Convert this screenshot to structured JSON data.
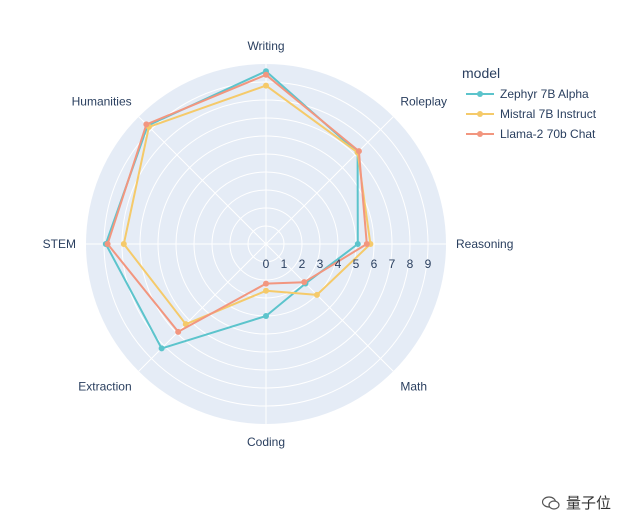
{
  "chart_data": {
    "type": "radar",
    "categories": [
      "Writing",
      "Roleplay",
      "Reasoning",
      "Math",
      "Coding",
      "Extraction",
      "STEM",
      "Humanities"
    ],
    "radial_ticks": [
      "0",
      "1",
      "2",
      "3",
      "4",
      "5",
      "6",
      "7",
      "8",
      "9"
    ],
    "rlim": [
      0,
      10
    ],
    "legend_title": "model",
    "legend_position": "top-right",
    "grid": true,
    "series": [
      {
        "name": "Zephyr 7B Alpha",
        "color": "#5cc4cc",
        "values": [
          9.6,
          7.2,
          5.1,
          3.1,
          4.0,
          8.2,
          8.9,
          9.3
        ]
      },
      {
        "name": "Mistral 7B Instruct",
        "color": "#f5ca6a",
        "values": [
          8.8,
          7.2,
          5.8,
          4.0,
          2.6,
          6.3,
          7.9,
          9.2
        ]
      },
      {
        "name": "Llama-2 70b Chat",
        "color": "#f2967f",
        "values": [
          9.4,
          7.3,
          5.6,
          3.0,
          2.2,
          6.9,
          8.8,
          9.4
        ]
      }
    ]
  },
  "watermark": {
    "text": "量子位"
  }
}
